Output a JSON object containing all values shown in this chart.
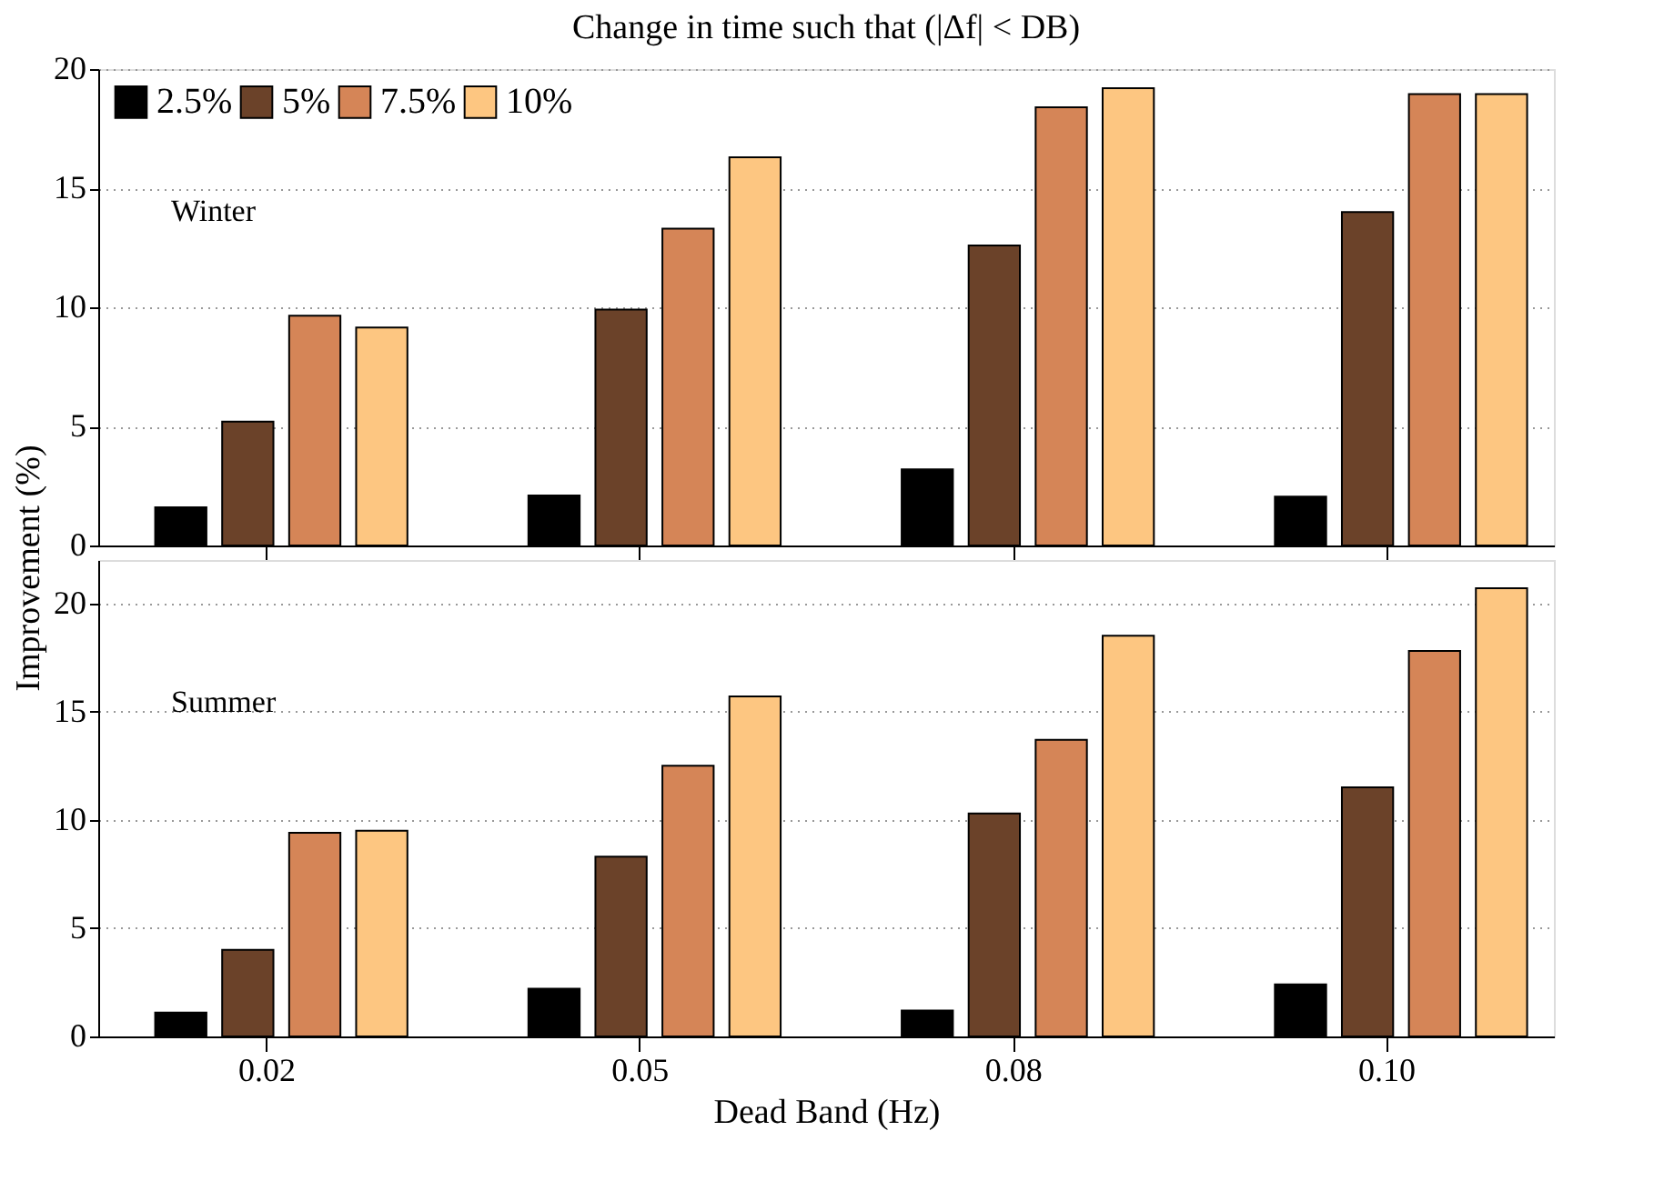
{
  "chart_data": [
    {
      "type": "bar",
      "title": "Change in time such that (|Δf| < DB)",
      "ylabel": "Improvement (%)",
      "categories": [
        "0.02",
        "0.05",
        "0.08",
        "0.10"
      ],
      "series": [
        {
          "name": "2.5%",
          "color": "#000000",
          "values": [
            1.6,
            2.1,
            3.2,
            2.05
          ]
        },
        {
          "name": "5%",
          "color": "#6b4229",
          "values": [
            5.2,
            9.9,
            12.6,
            14.0
          ]
        },
        {
          "name": "7.5%",
          "color": "#d58557",
          "values": [
            9.65,
            13.3,
            18.4,
            18.95
          ]
        },
        {
          "name": "10%",
          "color": "#fdc681",
          "values": [
            9.15,
            16.3,
            19.2,
            18.95
          ]
        }
      ],
      "ylim": [
        0,
        20
      ],
      "yticks": [
        0,
        5,
        10,
        15,
        20
      ],
      "grid": "y",
      "legend": "top left",
      "tick_labels": "y",
      "annotations": [
        "Winter"
      ]
    },
    {
      "type": "bar",
      "xlabel": "Dead Band (Hz)",
      "categories": [
        "0.02",
        "0.05",
        "0.08",
        "0.10"
      ],
      "series": [
        {
          "name": "2.5%",
          "color": "#000000",
          "values": [
            1.1,
            2.2,
            1.2,
            2.4
          ]
        },
        {
          "name": "5%",
          "color": "#6b4229",
          "values": [
            4.0,
            8.3,
            10.3,
            11.5
          ]
        },
        {
          "name": "7.5%",
          "color": "#d58557",
          "values": [
            9.4,
            12.5,
            13.7,
            17.8
          ]
        },
        {
          "name": "10%",
          "color": "#fdc681",
          "values": [
            9.5,
            15.7,
            18.5,
            20.7
          ]
        }
      ],
      "ylim": [
        0,
        22
      ],
      "yticks": [
        0,
        5,
        10,
        15,
        20
      ],
      "grid": "y",
      "annotations": [
        "Summer"
      ]
    }
  ]
}
